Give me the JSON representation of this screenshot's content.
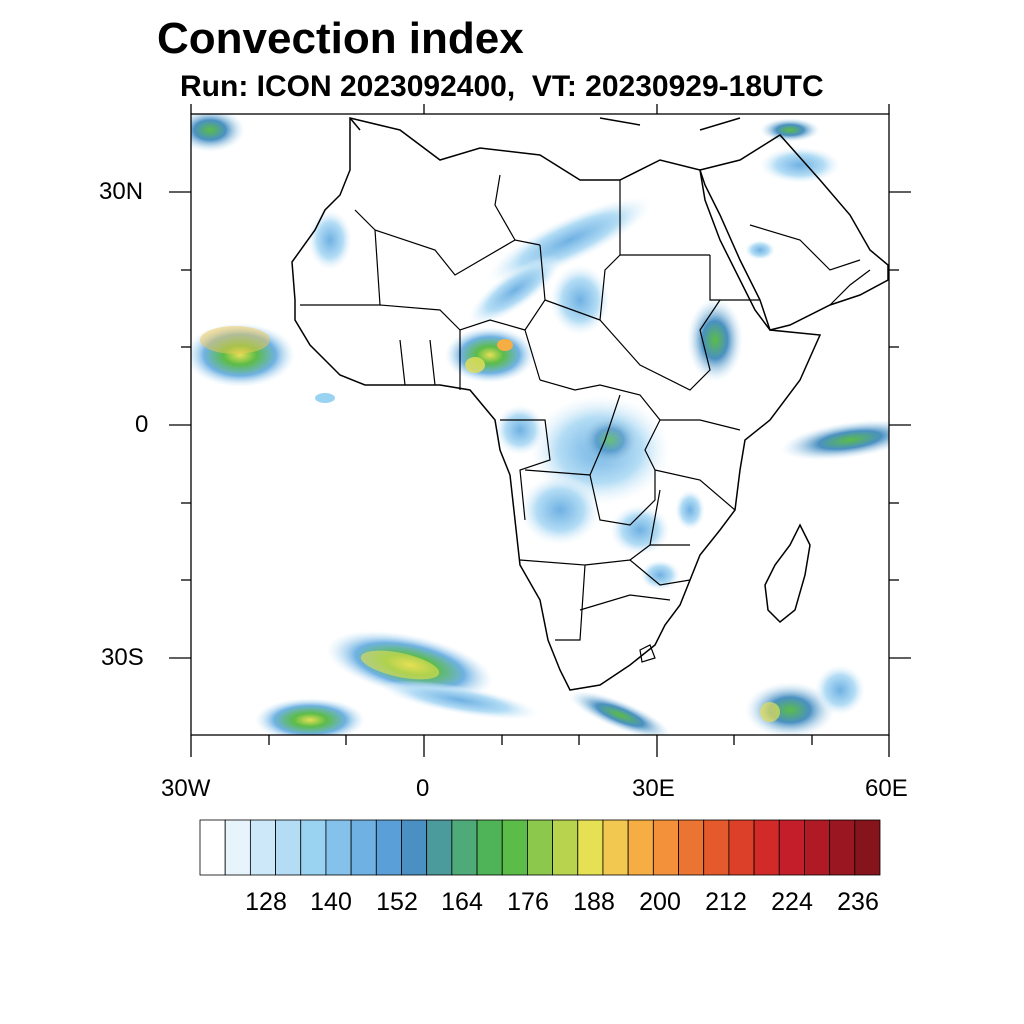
{
  "title": "Convection index",
  "subtitle": "Run: ICON 2023092400,  VT: 20230929-18UTC",
  "axes": {
    "lon_labels": [
      "30W",
      "0",
      "30E",
      "60E"
    ],
    "lat_labels": [
      "30N",
      "0",
      "30S"
    ]
  },
  "colorbar": {
    "labels": [
      "128",
      "140",
      "152",
      "164",
      "176",
      "188",
      "200",
      "212",
      "224",
      "236"
    ],
    "colors": [
      "#ffffff",
      "#e8f4fc",
      "#cde8f8",
      "#b4ddf5",
      "#9ad2f2",
      "#84c2ec",
      "#6fb1e3",
      "#5a9fd8",
      "#4a90c2",
      "#4b9a9c",
      "#4faa7a",
      "#4fb458",
      "#5cbc48",
      "#8cc84c",
      "#b8d44e",
      "#e6e054",
      "#f3c850",
      "#f5ad44",
      "#f3913a",
      "#ec7432",
      "#e45a2c",
      "#dc4028",
      "#d22a28",
      "#c41e2a",
      "#b01a24",
      "#9a1620",
      "#85141c"
    ]
  },
  "map": {
    "region": "Africa",
    "lon_range": [
      -30,
      60
    ],
    "lat_range": [
      -40,
      40
    ]
  }
}
